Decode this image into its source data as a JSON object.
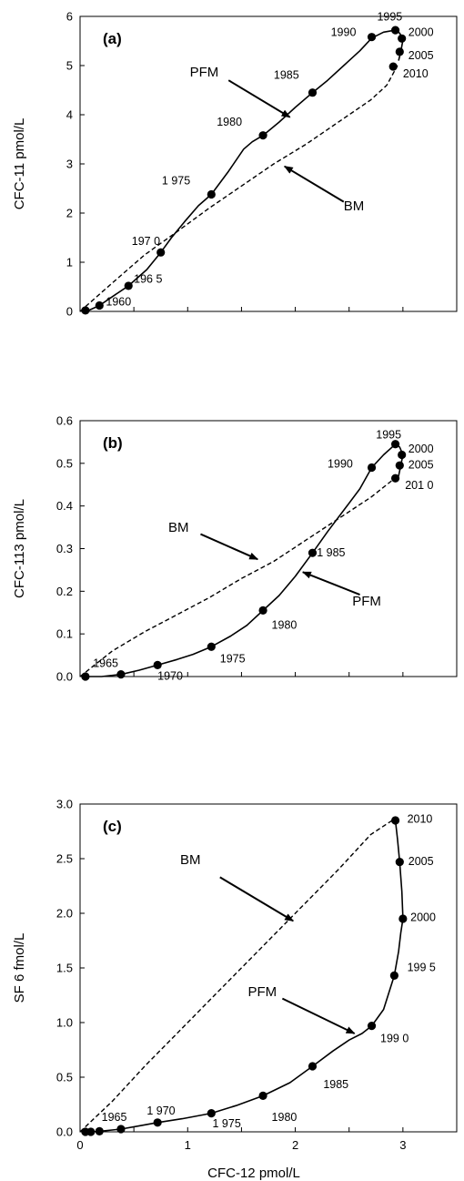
{
  "chart_data": [
    {
      "type": "line",
      "panel_label": "(a)",
      "ylabel": "CFC-11 pmol/L",
      "xlabel": "",
      "xlim": [
        0,
        3.5
      ],
      "ylim": [
        0,
        6
      ],
      "yticks": [
        "0",
        "1",
        "2",
        "3",
        "4",
        "5",
        "6"
      ],
      "series": [
        {
          "name": "PFM",
          "style": "solid",
          "x": [
            0.02,
            0.08,
            0.18,
            0.3,
            0.45,
            0.62,
            0.75,
            0.85,
            0.97,
            1.1,
            1.22,
            1.38,
            1.52,
            1.6,
            1.7,
            1.85,
            2.0,
            2.16,
            2.3,
            2.45,
            2.6,
            2.71,
            2.82,
            2.93,
            2.97,
            3.0,
            2.98,
            2.96
          ],
          "y": [
            0.0,
            0.02,
            0.12,
            0.3,
            0.52,
            0.85,
            1.2,
            1.5,
            1.82,
            2.15,
            2.38,
            2.85,
            3.3,
            3.45,
            3.58,
            3.85,
            4.15,
            4.45,
            4.7,
            5.0,
            5.3,
            5.56,
            5.68,
            5.72,
            5.66,
            5.52,
            5.28,
            5.1
          ]
        },
        {
          "name": "BM",
          "style": "dashed",
          "x": [
            0.0,
            0.3,
            0.6,
            0.9,
            1.2,
            1.5,
            1.8,
            2.1,
            2.4,
            2.7,
            2.85,
            2.95
          ],
          "y": [
            0.0,
            0.58,
            1.15,
            1.62,
            2.1,
            2.55,
            3.0,
            3.4,
            3.85,
            4.3,
            4.6,
            5.0
          ]
        }
      ],
      "markers": [
        {
          "x": 0.05,
          "y": 0.02
        },
        {
          "x": 0.18,
          "y": 0.12
        },
        {
          "x": 0.45,
          "y": 0.52
        },
        {
          "x": 0.75,
          "y": 1.2
        },
        {
          "x": 1.22,
          "y": 2.38
        },
        {
          "x": 1.7,
          "y": 3.58
        },
        {
          "x": 2.16,
          "y": 4.45
        },
        {
          "x": 2.71,
          "y": 5.58
        },
        {
          "x": 2.93,
          "y": 5.72
        },
        {
          "x": 2.99,
          "y": 5.55
        },
        {
          "x": 2.97,
          "y": 5.28
        },
        {
          "x": 2.91,
          "y": 4.98
        }
      ],
      "annotations": [
        {
          "text": "1960",
          "x": 0.24,
          "y": 0.12
        },
        {
          "text": "196 5",
          "x": 0.5,
          "y": 0.58
        },
        {
          "text": "197 0",
          "x": 0.48,
          "y": 1.35
        },
        {
          "text": "1 975",
          "x": 0.76,
          "y": 2.58
        },
        {
          "text": "1980",
          "x": 1.27,
          "y": 3.78
        },
        {
          "text": "1985",
          "x": 1.8,
          "y": 4.73
        },
        {
          "text": "1990",
          "x": 2.33,
          "y": 5.6
        },
        {
          "text": "1995",
          "x": 2.76,
          "y": 5.92
        },
        {
          "text": "2000",
          "x": 3.05,
          "y": 5.6
        },
        {
          "text": "2005",
          "x": 3.05,
          "y": 5.13
        },
        {
          "text": "2010",
          "x": 3.0,
          "y": 4.76
        },
        {
          "text": "PFM",
          "x": 1.02,
          "y": 4.78
        },
        {
          "text": "BM",
          "x": 2.45,
          "y": 2.06
        }
      ],
      "arrows": [
        {
          "from": [
            1.38,
            4.7
          ],
          "to": [
            1.95,
            3.95
          ]
        },
        {
          "from": [
            2.45,
            2.23
          ],
          "to": [
            1.9,
            2.95
          ]
        }
      ]
    },
    {
      "type": "line",
      "panel_label": "(b)",
      "ylabel": "CFC-113 pmol/L",
      "xlabel": "",
      "xlim": [
        0,
        3.5
      ],
      "ylim": [
        0,
        0.6
      ],
      "yticks": [
        "0.0",
        "0.1",
        "0.2",
        "0.3",
        "0.4",
        "0.5",
        "0.6"
      ],
      "series": [
        {
          "name": "PFM",
          "style": "solid",
          "x": [
            0.03,
            0.1,
            0.2,
            0.38,
            0.55,
            0.72,
            0.9,
            1.05,
            1.22,
            1.4,
            1.55,
            1.7,
            1.85,
            2.0,
            2.16,
            2.3,
            2.45,
            2.6,
            2.71,
            2.82,
            2.93,
            2.97,
            3.0,
            2.98,
            2.96
          ],
          "y": [
            0.0,
            0.0,
            0.0,
            0.005,
            0.015,
            0.027,
            0.04,
            0.052,
            0.07,
            0.095,
            0.12,
            0.155,
            0.19,
            0.235,
            0.29,
            0.34,
            0.39,
            0.44,
            0.49,
            0.52,
            0.545,
            0.538,
            0.52,
            0.495,
            0.47
          ]
        },
        {
          "name": "BM",
          "style": "dashed",
          "x": [
            0.0,
            0.15,
            0.3,
            0.6,
            0.9,
            1.2,
            1.5,
            1.8,
            2.1,
            2.4,
            2.7,
            2.85,
            2.95
          ],
          "y": [
            0.0,
            0.03,
            0.06,
            0.105,
            0.145,
            0.185,
            0.23,
            0.27,
            0.32,
            0.37,
            0.42,
            0.45,
            0.47
          ]
        }
      ],
      "markers": [
        {
          "x": 0.05,
          "y": 0.0
        },
        {
          "x": 0.38,
          "y": 0.005
        },
        {
          "x": 0.72,
          "y": 0.027
        },
        {
          "x": 1.22,
          "y": 0.07
        },
        {
          "x": 1.7,
          "y": 0.155
        },
        {
          "x": 2.16,
          "y": 0.29
        },
        {
          "x": 2.71,
          "y": 0.49
        },
        {
          "x": 2.93,
          "y": 0.545
        },
        {
          "x": 2.99,
          "y": 0.52
        },
        {
          "x": 2.97,
          "y": 0.495
        },
        {
          "x": 2.93,
          "y": 0.465
        }
      ],
      "annotations": [
        {
          "text": "1965",
          "x": 0.12,
          "y": 0.022
        },
        {
          "text": "1970",
          "x": 0.72,
          "y": -0.008
        },
        {
          "text": "1975",
          "x": 1.3,
          "y": 0.033
        },
        {
          "text": "1980",
          "x": 1.78,
          "y": 0.112
        },
        {
          "text": "1 985",
          "x": 2.2,
          "y": 0.282
        },
        {
          "text": "1990",
          "x": 2.3,
          "y": 0.49
        },
        {
          "text": "1995",
          "x": 2.75,
          "y": 0.558
        },
        {
          "text": "2000",
          "x": 3.05,
          "y": 0.525
        },
        {
          "text": "2005",
          "x": 3.05,
          "y": 0.488
        },
        {
          "text": "201 0",
          "x": 3.02,
          "y": 0.44
        },
        {
          "text": "BM",
          "x": 0.82,
          "y": 0.34
        },
        {
          "text": "PFM",
          "x": 2.53,
          "y": 0.167
        }
      ],
      "arrows": [
        {
          "from": [
            1.12,
            0.334
          ],
          "to": [
            1.65,
            0.275
          ]
        },
        {
          "from": [
            2.6,
            0.192
          ],
          "to": [
            2.07,
            0.245
          ]
        }
      ]
    },
    {
      "type": "line",
      "panel_label": "(c)",
      "ylabel": "SF 6 fmol/L",
      "xlabel": "CFC-12 pmol/L",
      "xlim": [
        0,
        3.5
      ],
      "ylim": [
        0,
        3.0
      ],
      "xticks": [
        "0",
        "1",
        "2",
        "3"
      ],
      "yticks": [
        "0.0",
        "0.5",
        "1.0",
        "1.5",
        "2.0",
        "2.5",
        "3.0"
      ],
      "series": [
        {
          "name": "PFM",
          "style": "solid",
          "x": [
            0.03,
            0.1,
            0.18,
            0.38,
            0.55,
            0.72,
            0.95,
            1.22,
            1.45,
            1.7,
            1.95,
            2.16,
            2.35,
            2.5,
            2.62,
            2.71,
            2.82,
            2.92,
            2.96,
            2.98,
            3.0,
            2.99,
            2.97,
            2.95,
            2.93
          ],
          "y": [
            0.0,
            0.0,
            0.005,
            0.025,
            0.055,
            0.085,
            0.12,
            0.17,
            0.24,
            0.33,
            0.45,
            0.6,
            0.74,
            0.84,
            0.9,
            0.97,
            1.12,
            1.43,
            1.65,
            1.82,
            1.95,
            2.2,
            2.47,
            2.68,
            2.85
          ]
        },
        {
          "name": "BM",
          "style": "dashed",
          "x": [
            0.0,
            0.3,
            0.6,
            0.9,
            1.2,
            1.5,
            1.8,
            2.1,
            2.4,
            2.7,
            2.9
          ],
          "y": [
            0.0,
            0.28,
            0.6,
            0.9,
            1.2,
            1.5,
            1.8,
            2.1,
            2.4,
            2.72,
            2.85
          ]
        }
      ],
      "markers": [
        {
          "x": 0.05,
          "y": 0.0
        },
        {
          "x": 0.1,
          "y": 0.0
        },
        {
          "x": 0.18,
          "y": 0.005
        },
        {
          "x": 0.38,
          "y": 0.025
        },
        {
          "x": 0.72,
          "y": 0.085
        },
        {
          "x": 1.22,
          "y": 0.17
        },
        {
          "x": 1.7,
          "y": 0.33
        },
        {
          "x": 2.16,
          "y": 0.6
        },
        {
          "x": 2.71,
          "y": 0.97
        },
        {
          "x": 2.92,
          "y": 1.43
        },
        {
          "x": 3.0,
          "y": 1.95
        },
        {
          "x": 2.97,
          "y": 2.47
        },
        {
          "x": 2.93,
          "y": 2.85
        }
      ],
      "annotations": [
        {
          "text": "1965",
          "x": 0.2,
          "y": 0.1
        },
        {
          "text": "1 970",
          "x": 0.62,
          "y": 0.16
        },
        {
          "text": "1 975",
          "x": 1.23,
          "y": 0.04
        },
        {
          "text": "1980",
          "x": 1.78,
          "y": 0.1
        },
        {
          "text": "1985",
          "x": 2.26,
          "y": 0.4
        },
        {
          "text": "199 0",
          "x": 2.79,
          "y": 0.82
        },
        {
          "text": "199 5",
          "x": 3.04,
          "y": 1.47
        },
        {
          "text": "2000",
          "x": 3.07,
          "y": 1.93
        },
        {
          "text": "2005",
          "x": 3.05,
          "y": 2.44
        },
        {
          "text": "2010",
          "x": 3.04,
          "y": 2.83
        },
        {
          "text": "BM",
          "x": 0.93,
          "y": 2.45
        },
        {
          "text": "PFM",
          "x": 1.56,
          "y": 1.24
        }
      ],
      "arrows": [
        {
          "from": [
            1.3,
            2.33
          ],
          "to": [
            1.98,
            1.93
          ]
        },
        {
          "from": [
            1.88,
            1.22
          ],
          "to": [
            2.55,
            0.9
          ]
        }
      ]
    }
  ]
}
